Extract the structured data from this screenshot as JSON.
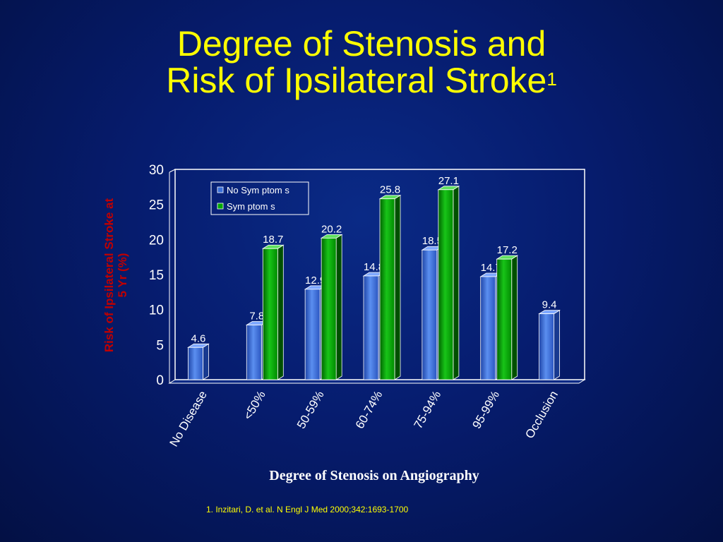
{
  "slide": {
    "title_line1": "Degree of Stenosis and",
    "title_line2": "Risk of Ipsilateral Stroke",
    "title_superscript": "1",
    "footnote": "1. Inzitari, D. et al. N Engl J Med 2000;342:1693-1700"
  },
  "colors": {
    "title": "#ffff00",
    "no_symptoms": "#3a6fd8",
    "symptoms": "#00a800",
    "axis_text": "#ffffff",
    "ylabel": "#c00000"
  },
  "chart_data": {
    "type": "bar",
    "title": "",
    "xlabel": "Degree of Stenosis on Angiography",
    "ylabel": "Risk of Ipsilateral Stroke at 5 Yr (%)",
    "ylim": [
      0,
      30
    ],
    "yticks": [
      0,
      5,
      10,
      15,
      20,
      25,
      30
    ],
    "legend_position": "top-left",
    "categories": [
      "No Disease",
      "<50%",
      "50-59%",
      "60-74%",
      "75-94%",
      "95-99%",
      "Occlusion"
    ],
    "series": [
      {
        "name": "No  Sym ptom s",
        "values": [
          4.6,
          7.8,
          12.9,
          14.8,
          18.5,
          14.7,
          9.4
        ]
      },
      {
        "name": "Sym ptom s",
        "values": [
          null,
          18.7,
          20.2,
          25.8,
          27.1,
          17.2,
          null
        ]
      }
    ]
  }
}
